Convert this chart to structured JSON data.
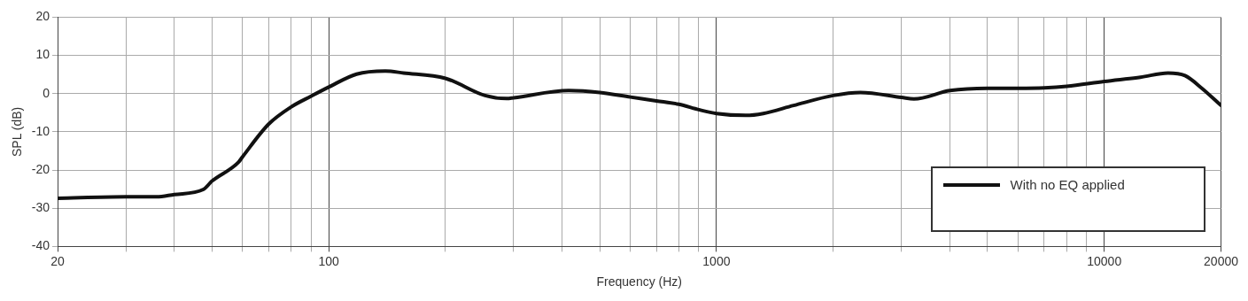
{
  "chart_data": {
    "type": "line",
    "xlabel": "Frequency (Hz)",
    "ylabel": "SPL (dB)",
    "log": "x",
    "xlim": [
      20,
      20000
    ],
    "ylim": [
      -40,
      20
    ],
    "xticks": [
      20,
      {
        "value": 30,
        "label": null
      },
      {
        "value": 40,
        "label": null
      },
      {
        "value": 50,
        "label": null
      },
      {
        "value": 60,
        "label": null
      },
      {
        "value": 70,
        "label": null
      },
      {
        "value": 80,
        "label": null
      },
      {
        "value": 90,
        "label": null
      },
      100,
      {
        "value": 200,
        "label": null
      },
      {
        "value": 300,
        "label": null
      },
      {
        "value": 400,
        "label": null
      },
      {
        "value": 500,
        "label": null
      },
      {
        "value": 600,
        "label": null
      },
      {
        "value": 700,
        "label": null
      },
      {
        "value": 800,
        "label": null
      },
      {
        "value": 900,
        "label": null
      },
      1000,
      {
        "value": 2000,
        "label": null
      },
      {
        "value": 3000,
        "label": null
      },
      {
        "value": 4000,
        "label": null
      },
      {
        "value": 5000,
        "label": null
      },
      {
        "value": 6000,
        "label": null
      },
      {
        "value": 7000,
        "label": null
      },
      {
        "value": 8000,
        "label": null
      },
      {
        "value": 9000,
        "label": null
      },
      10000,
      20000
    ],
    "yticks": [
      -40,
      -30,
      -20,
      -10,
      0,
      10,
      20
    ],
    "grid": true,
    "legend": "bottom right",
    "marker": "none",
    "line_style": "solid",
    "series": [
      {
        "name": "With no EQ applied",
        "color": "#111111",
        "x": [
          20,
          30,
          36,
          40,
          47.5,
          50,
          58.5,
          60,
          70,
          80,
          90,
          100,
          118,
          140,
          156,
          200,
          253,
          288,
          300,
          416,
          500,
          600,
          700,
          800,
          900,
          1000,
          1190,
          1320,
          1580,
          2000,
          2350,
          3000,
          3230,
          4000,
          5000,
          6000,
          7000,
          8000,
          10000,
          12400,
          14600,
          16150,
          17850,
          20000
        ],
        "values": [
          -27.4,
          -27,
          -27,
          -26.4,
          -25.1,
          -22.9,
          -18,
          -16.5,
          -8,
          -3.5,
          -0.7,
          1.7,
          5.1,
          5.9,
          5.4,
          4,
          -0.5,
          -1.3,
          -1.1,
          0.8,
          0.3,
          -0.9,
          -1.9,
          -2.8,
          -4.2,
          -5.2,
          -5.7,
          -5.2,
          -3.1,
          -0.5,
          0.3,
          -1,
          -1.4,
          0.8,
          1.4,
          1.4,
          1.5,
          1.9,
          3.2,
          4.3,
          5.4,
          4.7,
          1.4,
          -3.1
        ]
      }
    ]
  }
}
